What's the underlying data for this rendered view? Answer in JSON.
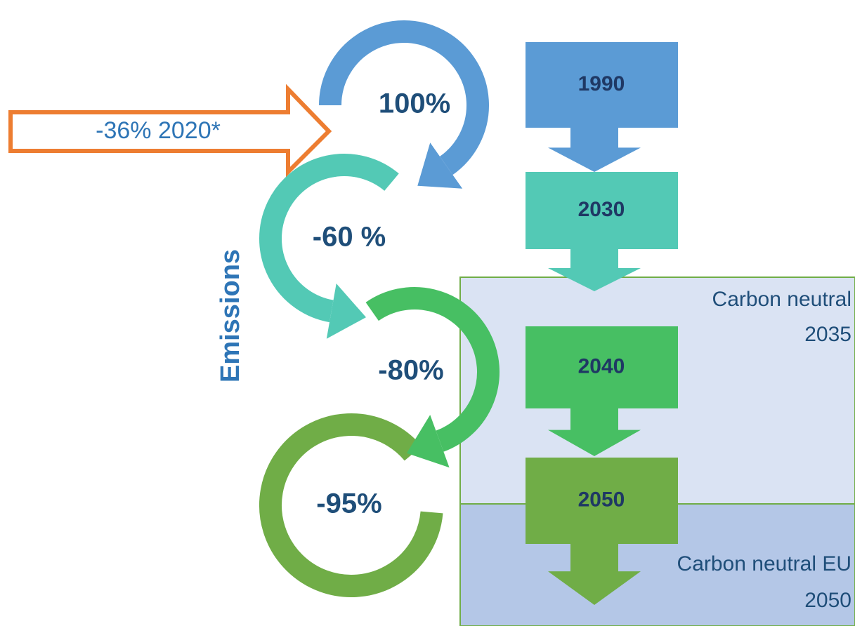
{
  "axis_label": "Emissions",
  "reduction_steps": [
    {
      "label": "100%"
    },
    {
      "label": "-60 %"
    },
    {
      "label": "-80%"
    },
    {
      "label": "-95%"
    }
  ],
  "years": [
    "1990",
    "2030",
    "2040",
    "2050"
  ],
  "milestone_arrow": {
    "label": "-36% 2020*"
  },
  "zones": [
    {
      "lines": [
        "Carbon neutral",
        "2035"
      ]
    },
    {
      "lines": [
        "Carbon neutral EU",
        "2050"
      ]
    }
  ]
}
